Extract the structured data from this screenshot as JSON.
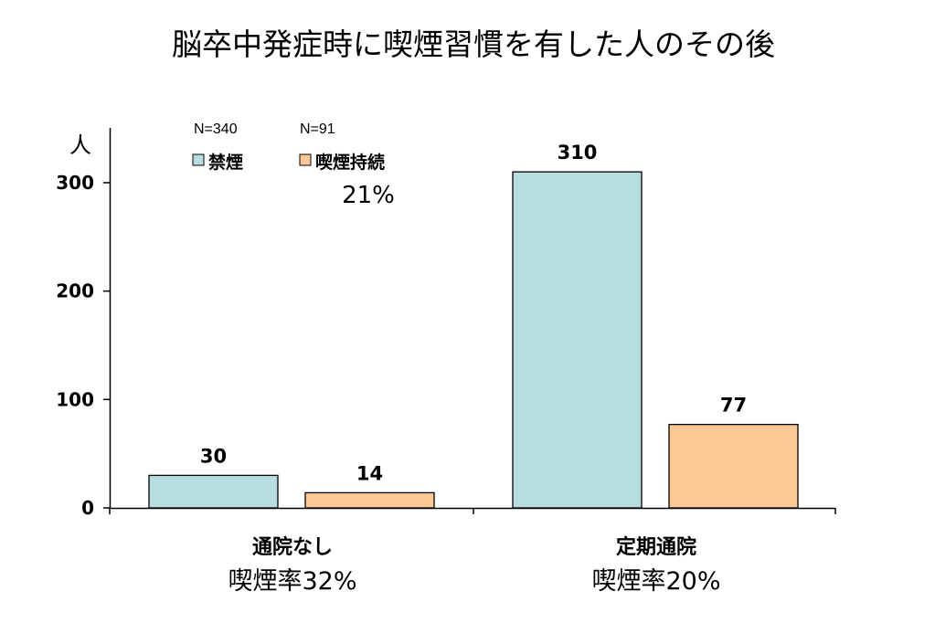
{
  "chart_data": {
    "type": "bar",
    "title": "脳卒中発症時に喫煙習慣を有した人のその後",
    "ylabel": "人",
    "ylim": [
      0,
      340
    ],
    "yticks": [
      "0",
      "100",
      "200",
      "300"
    ],
    "grid": false,
    "categories": [
      "通院なし",
      "定期通院"
    ],
    "category_rates": [
      "喫煙率32%",
      "喫煙率20%"
    ],
    "series": [
      {
        "name": "禁煙",
        "n_label": "N=340",
        "color": "#b7dde0",
        "values": [
          30,
          310
        ]
      },
      {
        "name": "喫煙持続",
        "n_label": "N=91",
        "color": "#fcc896",
        "values": [
          14,
          77
        ]
      }
    ],
    "value_labels": [
      [
        "30",
        "310"
      ],
      [
        "14",
        "77"
      ]
    ],
    "overall_rate": "21%",
    "legend_position": "top-left"
  }
}
